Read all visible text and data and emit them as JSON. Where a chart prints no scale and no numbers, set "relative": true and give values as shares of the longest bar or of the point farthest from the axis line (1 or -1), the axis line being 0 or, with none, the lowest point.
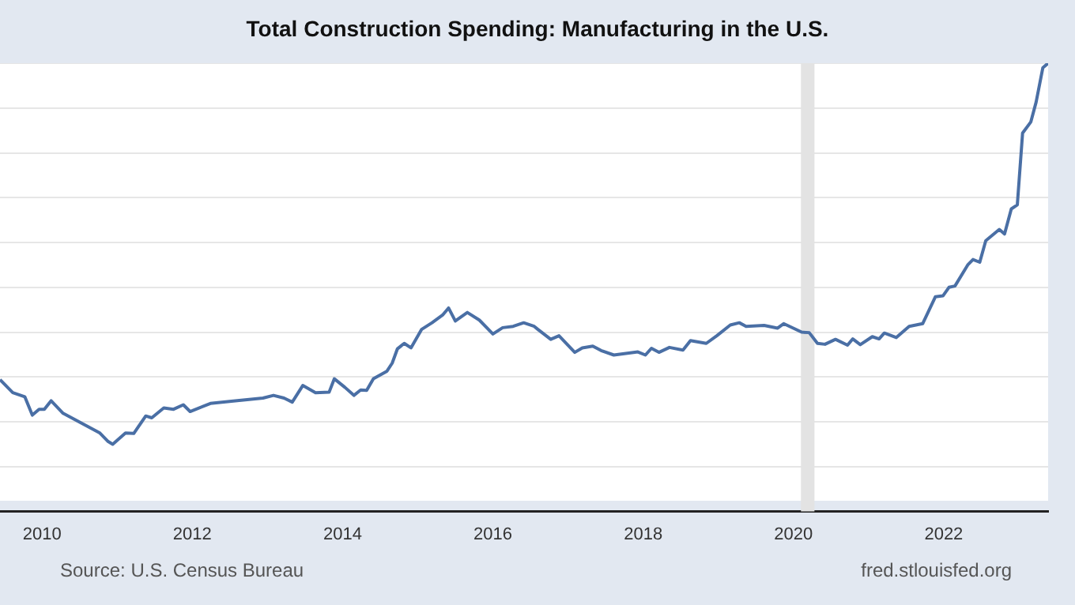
{
  "chart_data": {
    "type": "line",
    "title": "Total Construction Spending: Manufacturing in the U.S.",
    "relative": true,
    "grid": "y",
    "legend": false,
    "marker": "none",
    "xlim": [
      2009.44,
      2023.39
    ],
    "xticks": [
      2010,
      2012,
      2014,
      2016,
      2018,
      2020,
      2022
    ],
    "bands": [
      {
        "axis": "x",
        "from": 2020.1,
        "to": 2020.28,
        "color": "#e3e3e3"
      }
    ],
    "annotations": [
      "Source: U.S. Census Bureau",
      "fred.stlouisfed.org"
    ],
    "series": [
      {
        "color": "#4a6fa5",
        "x": [
          2009.44,
          2009.61,
          2009.77,
          2009.87,
          2009.96,
          2010.03,
          2010.12,
          2010.28,
          2010.77,
          2010.88,
          2010.94,
          2011.11,
          2011.22,
          2011.38,
          2011.46,
          2011.62,
          2011.75,
          2011.88,
          2011.97,
          2012.24,
          2012.52,
          2012.94,
          2013.08,
          2013.22,
          2013.33,
          2013.47,
          2013.64,
          2013.82,
          2013.89,
          2014.03,
          2014.15,
          2014.24,
          2014.32,
          2014.41,
          2014.59,
          2014.66,
          2014.73,
          2014.82,
          2014.91,
          2015.05,
          2015.19,
          2015.33,
          2015.41,
          2015.5,
          2015.66,
          2015.82,
          2016.0,
          2016.13,
          2016.27,
          2016.41,
          2016.55,
          2016.6,
          2016.77,
          2016.88,
          2017.09,
          2017.19,
          2017.33,
          2017.44,
          2017.61,
          2017.93,
          2018.03,
          2018.11,
          2018.21,
          2018.35,
          2018.53,
          2018.63,
          2018.84,
          2018.98,
          2019.16,
          2019.28,
          2019.37,
          2019.61,
          2019.79,
          2019.87,
          2020.11,
          2020.21,
          2020.32,
          2020.42,
          2020.56,
          2020.72,
          2020.79,
          2020.89,
          2021.05,
          2021.14,
          2021.21,
          2021.37,
          2021.54,
          2021.72,
          2021.89,
          2021.99,
          2022.07,
          2022.15,
          2022.32,
          2022.39,
          2022.48,
          2022.56,
          2022.74,
          2022.81,
          2022.9,
          2022.98,
          2023.05,
          2023.16,
          2023.23,
          2023.32,
          2023.39
        ],
        "values": [
          0.294,
          0.265,
          0.256,
          0.215,
          0.228,
          0.228,
          0.247,
          0.219,
          0.175,
          0.156,
          0.15,
          0.175,
          0.174,
          0.213,
          0.209,
          0.231,
          0.228,
          0.238,
          0.223,
          0.241,
          0.246,
          0.253,
          0.259,
          0.253,
          0.244,
          0.281,
          0.265,
          0.266,
          0.296,
          0.277,
          0.259,
          0.271,
          0.27,
          0.296,
          0.313,
          0.331,
          0.363,
          0.375,
          0.365,
          0.406,
          0.421,
          0.438,
          0.454,
          0.425,
          0.444,
          0.427,
          0.396,
          0.41,
          0.413,
          0.421,
          0.413,
          0.406,
          0.384,
          0.392,
          0.355,
          0.365,
          0.369,
          0.359,
          0.349,
          0.356,
          0.349,
          0.364,
          0.355,
          0.366,
          0.36,
          0.381,
          0.375,
          0.392,
          0.416,
          0.421,
          0.413,
          0.415,
          0.409,
          0.419,
          0.4,
          0.399,
          0.375,
          0.373,
          0.384,
          0.371,
          0.385,
          0.372,
          0.39,
          0.385,
          0.398,
          0.388,
          0.413,
          0.419,
          0.479,
          0.481,
          0.5,
          0.503,
          0.55,
          0.562,
          0.556,
          0.604,
          0.629,
          0.619,
          0.675,
          0.684,
          0.844,
          0.869,
          0.913,
          0.99,
          1.0
        ]
      }
    ]
  }
}
